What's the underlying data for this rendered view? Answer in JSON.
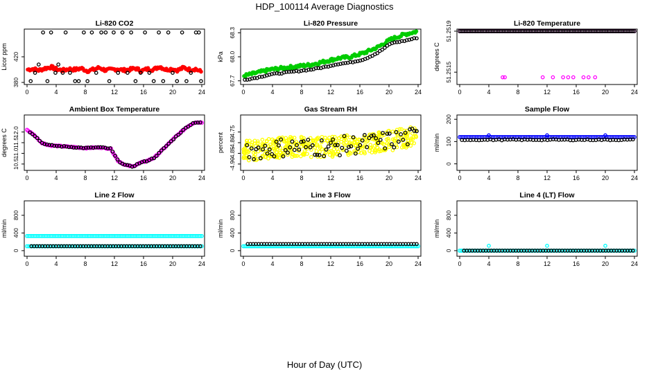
{
  "figure": {
    "title": "HDP_100114  Average Diagnostics",
    "x_label": "Hour of Day (UTC)"
  },
  "chart_data": [
    {
      "type": "scatter",
      "title": "Li-820 CO2",
      "ylabel": "Licor ppm",
      "xlim": [
        0,
        24
      ],
      "ylim": [
        380,
        460
      ],
      "x_ticks": [
        0,
        4,
        8,
        12,
        16,
        20,
        24
      ],
      "y_ticks": [
        380,
        420
      ],
      "y_tick_labels": [
        "380",
        "420"
      ],
      "series": [
        {
          "color": "#ff0000",
          "pattern": "band",
          "values": [
            400,
            401,
            399,
            402,
            404,
            400,
            399,
            401,
            400,
            402,
            398,
            400,
            403,
            399,
            400,
            401,
            399,
            400,
            402,
            398,
            401,
            400,
            405,
            400,
            401,
            399,
            403,
            400,
            401,
            396
          ]
        },
        {
          "color": "#000000",
          "pattern": "outliers",
          "x": [
            0.5,
            1.1,
            1.6,
            2.2,
            2.8,
            3.3,
            3.9,
            4.3,
            4.9,
            5.3,
            5.9,
            6.6,
            7.1,
            7.8,
            8.3,
            8.9,
            9.5,
            10.2,
            10.8,
            11.3,
            11.9,
            12.5,
            13.1,
            13.8,
            14.3,
            14.9,
            15.6,
            16.2,
            16.8,
            17.4,
            18.1,
            18.7,
            19.4,
            20.0,
            20.6,
            21.3,
            21.9,
            22.5,
            23.2,
            23.6,
            23.9
          ],
          "y": [
            382,
            395,
            408,
            458,
            382,
            458,
            395,
            408,
            395,
            458,
            395,
            382,
            382,
            458,
            382,
            458,
            395,
            458,
            458,
            382,
            458,
            395,
            458,
            395,
            458,
            382,
            395,
            458,
            395,
            382,
            458,
            382,
            458,
            395,
            382,
            458,
            382,
            395,
            458,
            458,
            382
          ]
        }
      ]
    },
    {
      "type": "scatter",
      "title": "Li-820 Pressure",
      "ylabel": "kPa",
      "xlim": [
        0,
        24
      ],
      "ylim": [
        67.68,
        68.32
      ],
      "x_ticks": [
        0,
        4,
        8,
        12,
        16,
        20,
        24
      ],
      "y_ticks": [
        67.7,
        68.0,
        68.3
      ],
      "y_tick_labels": [
        "67.7",
        "68.0",
        "68.3"
      ],
      "series": [
        {
          "color": "#00cc00",
          "pattern": "band",
          "values": [
            67.76,
            67.8,
            67.84,
            67.86,
            67.88,
            67.9,
            67.94,
            67.98,
            68.0,
            68.05,
            68.12,
            68.22,
            68.28,
            68.32
          ]
        },
        {
          "color": "#000000",
          "pattern": "offset",
          "values": [
            67.71,
            67.74,
            67.78,
            67.8,
            67.82,
            67.84,
            67.87,
            67.91,
            67.93,
            67.97,
            68.05,
            68.17,
            68.2,
            68.24
          ]
        }
      ]
    },
    {
      "type": "scatter",
      "title": "Li-820 Temperature",
      "ylabel": "degrees C",
      "xlim": [
        0,
        24
      ],
      "ylim": [
        51.2514,
        51.2519
      ],
      "x_ticks": [
        0,
        4,
        8,
        12,
        16,
        20,
        24
      ],
      "y_ticks": [
        51.2515,
        51.2519
      ],
      "y_tick_labels": [
        "51.2515",
        "51.2519"
      ],
      "y_tick_labels_extra": [
        "51.2515",
        "51.2519"
      ],
      "series": [
        {
          "color": "#ff00ff",
          "pattern": "flat",
          "values": [
            51.2519
          ]
        },
        {
          "color": "#000000",
          "pattern": "flat",
          "values": [
            51.2519
          ]
        },
        {
          "color": "#ff00ff",
          "pattern": "sparse",
          "x": [
            5.9,
            6.2,
            11.4,
            12.8,
            14.2,
            14.9,
            15.6,
            17.0,
            17.7,
            18.6
          ],
          "y": [
            51.25145,
            51.25145,
            51.25145,
            51.25145,
            51.25145,
            51.25145,
            51.25145,
            51.25145,
            51.25145,
            51.25145
          ]
        }
      ]
    },
    {
      "type": "scatter",
      "title": "Ambient Box Temperature",
      "ylabel": "degrees C",
      "xlim": [
        0,
        24
      ],
      "ylim": [
        10.3,
        12.7
      ],
      "x_ticks": [
        0,
        4,
        8,
        12,
        16,
        20,
        24
      ],
      "y_ticks": [
        10.5,
        11.0,
        11.5,
        12.0
      ],
      "y_tick_labels": [
        "10.5",
        "11.0",
        "11.5",
        "12.0"
      ],
      "series": [
        {
          "color": "#ff00ff",
          "pattern": "curve",
          "x": [
            0,
            1,
            2,
            3,
            4,
            6,
            8,
            10,
            11.5,
            12.5,
            13.5,
            14.5,
            15.5,
            16.5,
            17.5,
            19,
            20.5,
            22,
            23,
            24
          ],
          "y": [
            12.1,
            11.85,
            11.5,
            11.38,
            11.35,
            11.3,
            11.25,
            11.28,
            11.22,
            10.65,
            10.45,
            10.38,
            10.55,
            10.65,
            10.8,
            11.3,
            11.8,
            12.25,
            12.45,
            12.45
          ]
        },
        {
          "color": "#000000",
          "pattern": "curve-sparse",
          "x": [
            0,
            1,
            2,
            3,
            4,
            6,
            8,
            10,
            11.5,
            12.5,
            13.5,
            14.5,
            15.5,
            16.5,
            17.5,
            19,
            20.5,
            22,
            23,
            24
          ],
          "y": [
            12.1,
            11.85,
            11.5,
            11.38,
            11.35,
            11.3,
            11.25,
            11.28,
            11.22,
            10.65,
            10.45,
            10.38,
            10.55,
            10.65,
            10.8,
            11.3,
            11.8,
            12.25,
            12.45,
            12.45
          ]
        }
      ]
    },
    {
      "type": "scatter",
      "title": "Gas Stream RH",
      "ylabel": "percent",
      "xlim": [
        0,
        24
      ],
      "ylim": [
        -4.92,
        -4.68
      ],
      "x_ticks": [
        0,
        4,
        8,
        12,
        16,
        20,
        24
      ],
      "y_ticks": [
        -4.9,
        -4.85,
        -4.8,
        -4.75
      ],
      "y_tick_labels": [
        "-4.90",
        "-4.85",
        "-4.80",
        "-4.75"
      ],
      "series": [
        {
          "color": "#ffff00",
          "pattern": "noise",
          "center": [
            -4.84,
            -4.82,
            -4.82,
            -4.8,
            -4.77
          ],
          "spread": 0.06
        },
        {
          "color": "#000000",
          "pattern": "noise-sparse",
          "center": [
            -4.84,
            -4.82,
            -4.82,
            -4.8,
            -4.77
          ],
          "spread": 0.05
        }
      ]
    },
    {
      "type": "scatter",
      "title": "Sample Flow",
      "ylabel": "ml/min",
      "xlim": [
        0,
        24
      ],
      "ylim": [
        -20,
        210
      ],
      "x_ticks": [
        0,
        4,
        8,
        12,
        16,
        20,
        24
      ],
      "y_ticks": [
        0,
        100,
        200
      ],
      "y_tick_labels": [
        "0",
        "100",
        "200"
      ],
      "series": [
        {
          "color": "#0000ff",
          "pattern": "flat",
          "values": [
            120
          ]
        },
        {
          "color": "#000000",
          "pattern": "flat-below",
          "values": [
            108
          ]
        },
        {
          "color": "#0000ff",
          "pattern": "sparse",
          "x": [
            4.0,
            12.0,
            20.0
          ],
          "y": [
            128,
            128,
            128
          ]
        }
      ]
    },
    {
      "type": "scatter",
      "title": "Line 2 Flow",
      "ylabel": "ml/min",
      "xlim": [
        0,
        24
      ],
      "ylim": [
        -80,
        1080
      ],
      "x_ticks": [
        0,
        4,
        8,
        12,
        16,
        20,
        24
      ],
      "y_ticks": [
        0,
        400,
        800
      ],
      "y_tick_labels": [
        "0",
        "400",
        "800"
      ],
      "series": [
        {
          "color": "#00ffff",
          "pattern": "flat",
          "values": [
            330
          ]
        },
        {
          "color": "#00ffff",
          "pattern": "flat",
          "values": [
            100
          ]
        },
        {
          "color": "#000000",
          "pattern": "flat-sparse",
          "values": [
            100
          ]
        }
      ]
    },
    {
      "type": "scatter",
      "title": "Line 3 Flow",
      "ylabel": "ml/min",
      "xlim": [
        0,
        24
      ],
      "ylim": [
        -80,
        1080
      ],
      "x_ticks": [
        0,
        4,
        8,
        12,
        16,
        20,
        24
      ],
      "y_ticks": [
        0,
        400,
        800
      ],
      "y_tick_labels": [
        "0",
        "400",
        "800"
      ],
      "series": [
        {
          "color": "#00ffff",
          "pattern": "flat",
          "values": [
            100
          ]
        },
        {
          "color": "#000000",
          "pattern": "flat-sparse",
          "values": [
            150
          ]
        }
      ]
    },
    {
      "type": "scatter",
      "title": "Line 4 (LT) Flow",
      "ylabel": "ml/min",
      "xlim": [
        0,
        24
      ],
      "ylim": [
        -80,
        1080
      ],
      "x_ticks": [
        0,
        4,
        8,
        12,
        16,
        20,
        24
      ],
      "y_ticks": [
        0,
        400,
        800
      ],
      "y_tick_labels": [
        "0",
        "400",
        "800"
      ],
      "series": [
        {
          "color": "#00ffff",
          "pattern": "flat",
          "values": [
            0
          ]
        },
        {
          "color": "#000000",
          "pattern": "flat-sparse",
          "values": [
            0
          ]
        },
        {
          "color": "#00ffff",
          "pattern": "sparse",
          "x": [
            4.0,
            12.0,
            20.0
          ],
          "y": [
            110,
            110,
            110
          ]
        }
      ]
    }
  ]
}
